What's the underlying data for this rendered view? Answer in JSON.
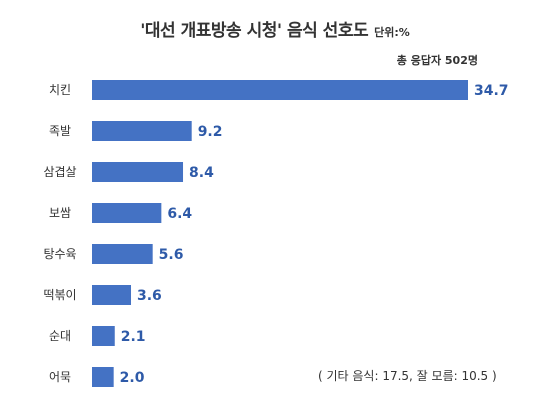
{
  "chart_data": {
    "type": "bar",
    "orientation": "horizontal",
    "title": "'대선 개표방송 시청' 음식 선호도",
    "unit_label": "단위:%",
    "respondents_label": "총 응답자 502명",
    "categories": [
      "치킨",
      "족발",
      "삼겹살",
      "보쌈",
      "탕수육",
      "떡볶이",
      "순대",
      "어묵"
    ],
    "values": [
      34.7,
      9.2,
      8.4,
      6.4,
      5.6,
      3.6,
      2.1,
      2.0
    ],
    "value_labels": [
      "34.7",
      "9.2",
      "8.4",
      "6.4",
      "5.6",
      "3.6",
      "2.1",
      "2.0"
    ],
    "note": "( 기타 음식: 17.5, 잘 모름: 10.5 )",
    "xlim": [
      0,
      34.7
    ],
    "grid": false,
    "legend": "none"
  },
  "colors": {
    "bar": "#4472c4",
    "value_text": "#2e5aa8",
    "text": "#333333"
  }
}
